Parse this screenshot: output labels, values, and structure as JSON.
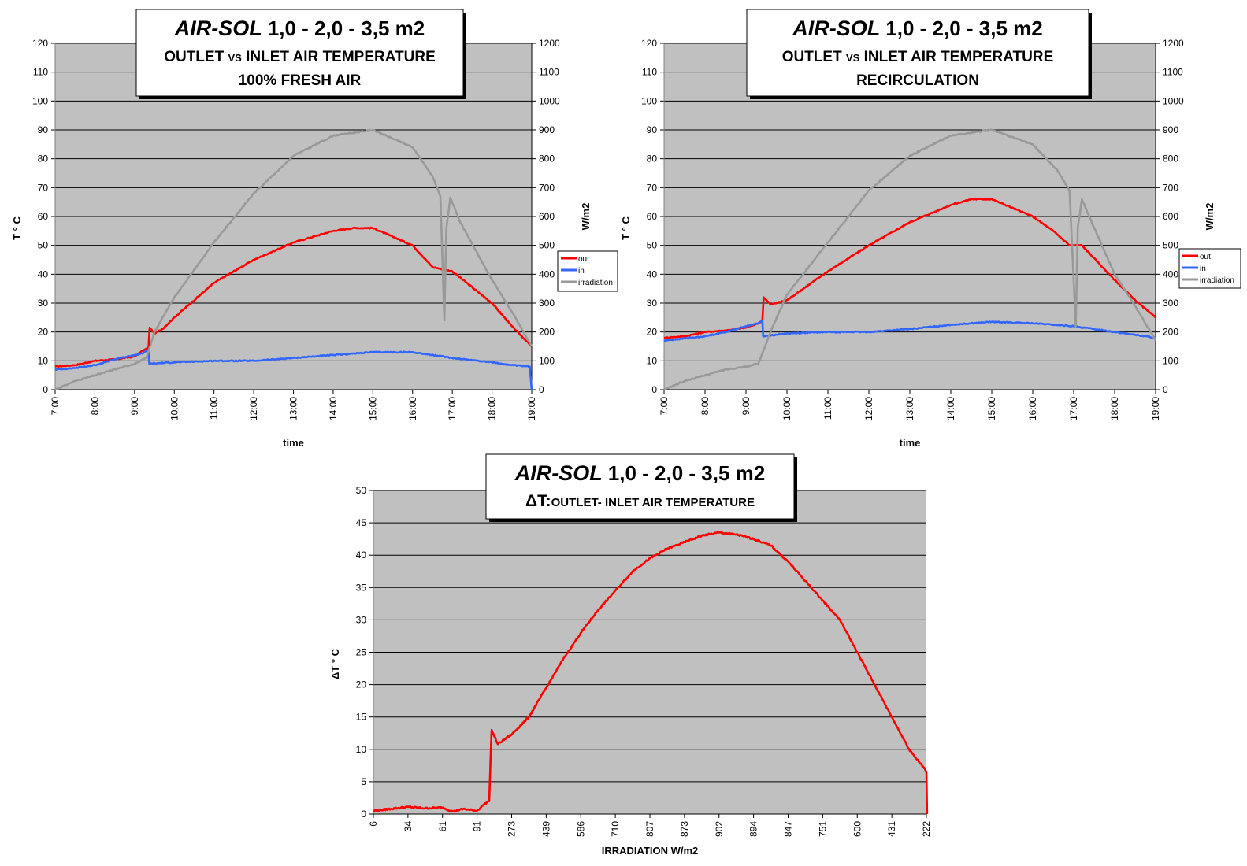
{
  "chart_data": [
    {
      "type": "line",
      "title_brand": "AIR-SOL",
      "title_main": "1,0 - 2,0 - 3,5 m2",
      "subtitle_1_pre": "OUTLET ",
      "subtitle_1_small": "VS",
      "subtitle_1_post": " INLET AIR TEMPERATURE",
      "subtitle_2": "100% FRESH AIR",
      "xlabel": "time",
      "ylabel": "T ° C",
      "y2label": "W/m2",
      "categories": [
        "7:00",
        "8:00",
        "9:00",
        "10:00",
        "11:00",
        "12:00",
        "13:00",
        "14:00",
        "15:00",
        "16:00",
        "17:00",
        "18:00",
        "19:00"
      ],
      "ylim": [
        0,
        120
      ],
      "y_ticks": [
        0,
        10,
        20,
        30,
        40,
        50,
        60,
        70,
        80,
        90,
        100,
        110,
        120
      ],
      "y2lim": [
        0,
        1200
      ],
      "y2_ticks": [
        0,
        100,
        200,
        300,
        400,
        500,
        600,
        700,
        800,
        900,
        1000,
        1100,
        1200
      ],
      "grid": true,
      "legend": "right",
      "series": [
        {
          "name": "out",
          "axis": "left",
          "color": "#ff0000",
          "x": [
            0,
            0.5,
            1,
            1.5,
            2,
            2.2,
            2.35,
            2.38,
            2.5,
            2.7,
            3,
            4,
            5,
            6,
            7,
            7.5,
            8,
            9,
            9.5,
            10,
            11,
            11.5,
            12
          ],
          "y": [
            8,
            8.5,
            10,
            10.5,
            11.5,
            13.5,
            14.5,
            21.5,
            19.5,
            21,
            25,
            37,
            45,
            51,
            55,
            56,
            56,
            50,
            42.5,
            41,
            30,
            22,
            15
          ]
        },
        {
          "name": "in",
          "axis": "left",
          "color": "#3366ff",
          "x": [
            0,
            0.5,
            1,
            1.5,
            2,
            2.2,
            2.35,
            2.37,
            3,
            4,
            5,
            6,
            7,
            8,
            9,
            10,
            11,
            11.5,
            11.95,
            12
          ],
          "y": [
            7,
            7.5,
            8.5,
            10.5,
            12,
            12.5,
            14,
            9,
            9.5,
            10,
            10,
            11,
            12,
            13,
            13,
            11,
            9.5,
            8.5,
            8,
            0
          ]
        },
        {
          "name": "irradiation",
          "axis": "right",
          "color": "#999999",
          "x": [
            0,
            0.5,
            1,
            1.5,
            2,
            2.3,
            2.5,
            3,
            4,
            5,
            6,
            7,
            8,
            9,
            9.5,
            9.7,
            9.8,
            9.85,
            9.95,
            10.2,
            11,
            11.5,
            12
          ],
          "y": [
            0,
            30,
            50,
            70,
            90,
            110,
            200,
            320,
            510,
            680,
            810,
            880,
            900,
            840,
            740,
            670,
            240,
            560,
            665,
            580,
            380,
            270,
            150
          ]
        }
      ]
    },
    {
      "type": "line",
      "title_brand": "AIR-SOL",
      "title_main": "1,0 - 2,0 - 3,5 m2",
      "subtitle_1_pre": "OUTLET ",
      "subtitle_1_small": "VS",
      "subtitle_1_post": " INLET AIR TEMPERATURE",
      "subtitle_2": "RECIRCULATION",
      "xlabel": "time",
      "ylabel": "T ° C",
      "y2label": "W/m2",
      "categories": [
        "7:00",
        "8:00",
        "9:00",
        "10:00",
        "11:00",
        "12:00",
        "13:00",
        "14:00",
        "15:00",
        "16:00",
        "17:00",
        "18:00",
        "19:00"
      ],
      "ylim": [
        0,
        120
      ],
      "y_ticks": [
        0,
        10,
        20,
        30,
        40,
        50,
        60,
        70,
        80,
        90,
        100,
        110,
        120
      ],
      "y2lim": [
        0,
        1200
      ],
      "y2_ticks": [
        0,
        100,
        200,
        300,
        400,
        500,
        600,
        700,
        800,
        900,
        1000,
        1100,
        1200
      ],
      "grid": true,
      "legend": "right",
      "series": [
        {
          "name": "out",
          "axis": "left",
          "color": "#ff0000",
          "x": [
            0,
            0.5,
            1,
            1.5,
            2,
            2.3,
            2.4,
            2.43,
            2.6,
            3,
            4,
            5,
            6,
            7,
            7.5,
            8,
            9,
            9.5,
            9.9,
            10.2,
            11,
            11.5,
            12
          ],
          "y": [
            18,
            18.5,
            20,
            20.5,
            21.5,
            23,
            24,
            32,
            29.5,
            31,
            41,
            50,
            58,
            64,
            66,
            66,
            60,
            55,
            50,
            50,
            38,
            31,
            25
          ]
        },
        {
          "name": "in",
          "axis": "left",
          "color": "#3366ff",
          "x": [
            0,
            1,
            1.5,
            2,
            2.3,
            2.4,
            2.42,
            3,
            4,
            5,
            6,
            7,
            8,
            9,
            10,
            10.5,
            11,
            12
          ],
          "y": [
            17,
            18.5,
            20,
            22,
            23,
            24,
            18.5,
            19.5,
            20,
            20,
            21,
            22.5,
            23.5,
            23,
            22,
            21,
            20,
            18
          ]
        },
        {
          "name": "irradiation",
          "axis": "right",
          "color": "#999999",
          "x": [
            0,
            0.5,
            1,
            1.5,
            2,
            2.3,
            2.6,
            3,
            4,
            5,
            6,
            7,
            8,
            9,
            9.6,
            9.9,
            10.05,
            10.1,
            10.2,
            10.5,
            11,
            11.5,
            12
          ],
          "y": [
            0,
            30,
            50,
            70,
            80,
            90,
            200,
            330,
            510,
            690,
            810,
            880,
            900,
            850,
            760,
            690,
            220,
            560,
            660,
            560,
            400,
            290,
            170
          ]
        }
      ]
    },
    {
      "type": "line",
      "title_brand": "AIR-SOL",
      "title_main": "1,0 - 2,0 - 3,5 m2",
      "subtitle_delta": "ΔT:",
      "subtitle_rest": "OUTLET- INLET AIR TEMPERATURE",
      "xlabel": "IRRADIATION W/m2",
      "ylabel": "ΔT ° C",
      "categories": [
        "6",
        "34",
        "61",
        "91",
        "273",
        "439",
        "586",
        "710",
        "807",
        "873",
        "902",
        "894",
        "847",
        "751",
        "600",
        "431",
        "222"
      ],
      "ylim": [
        0,
        50
      ],
      "y_ticks": [
        0,
        5,
        10,
        15,
        20,
        25,
        30,
        35,
        40,
        45,
        50
      ],
      "grid": true,
      "series": [
        {
          "name": "ΔT",
          "color": "#ff0000",
          "x": [
            0,
            0.5,
            1,
            1.5,
            2,
            2.3,
            2.6,
            3,
            3.2,
            3.35,
            3.42,
            3.6,
            4,
            4.5,
            5,
            5.5,
            6,
            6.5,
            7,
            7.5,
            8,
            8.5,
            9,
            9.5,
            10,
            10.5,
            11,
            11.5,
            12,
            12.5,
            13,
            13.5,
            14,
            14.5,
            15,
            15.5,
            15.95,
            16,
            16.02
          ],
          "y": [
            0.5,
            0.8,
            1.1,
            0.9,
            1.0,
            0.4,
            0.8,
            0.5,
            1.5,
            2.0,
            13,
            10.8,
            12.3,
            15,
            19.5,
            24,
            28,
            31.5,
            34.5,
            37.5,
            39.5,
            41,
            42,
            43,
            43.5,
            43.2,
            42.5,
            41.5,
            39,
            36,
            33,
            30,
            25,
            20,
            15,
            10,
            7,
            6.5,
            0
          ]
        }
      ]
    }
  ]
}
